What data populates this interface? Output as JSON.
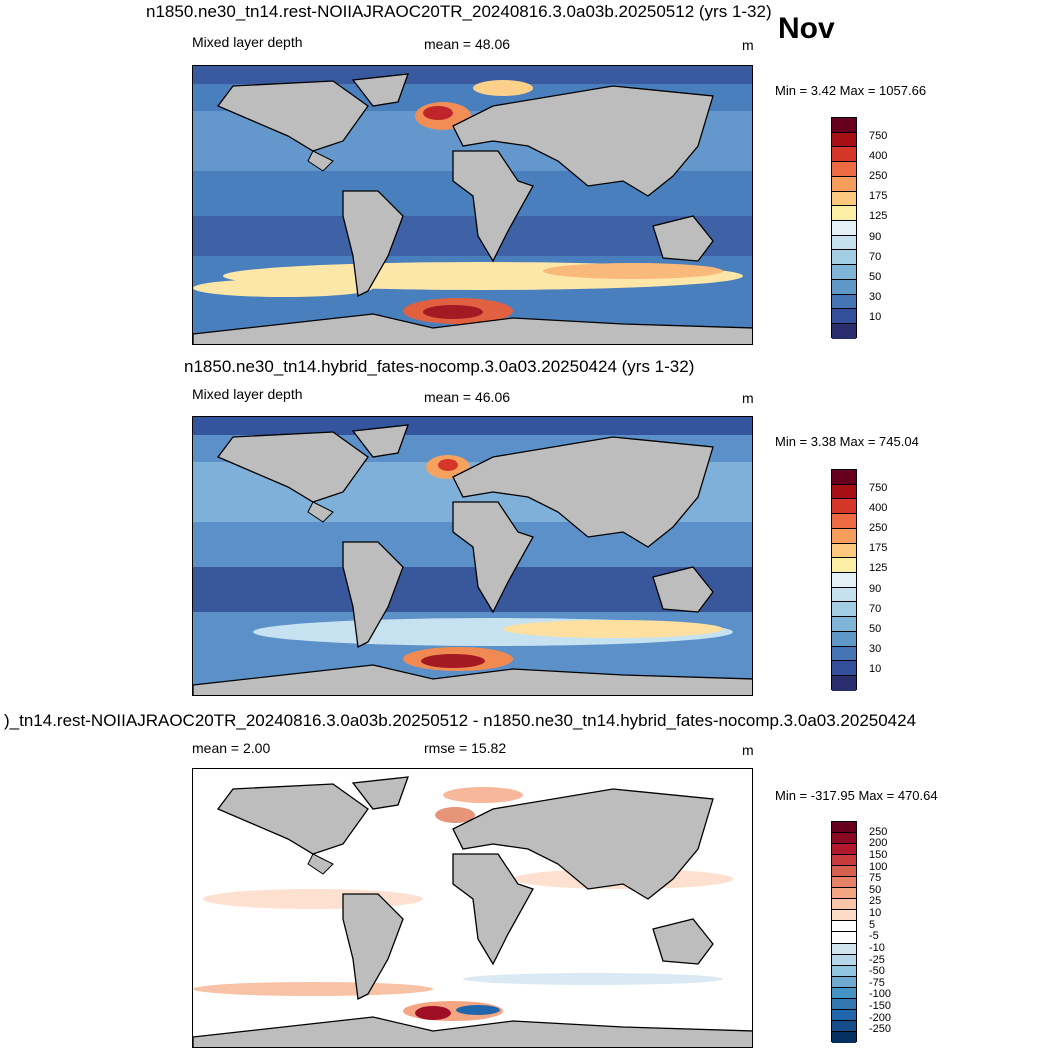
{
  "month": "Nov",
  "panels": [
    {
      "title": "n1850.ne30_tn14.rest-NOIIAJRAOC20TR_20240816.3.0a03b.20250512 (yrs 1-32)",
      "left_label": "Mixed layer depth",
      "center_label": "mean =  48.06",
      "units": "m",
      "minmax": "Min =   3.42 Max = 1057.66",
      "colorbar_labels": [
        "750",
        "400",
        "250",
        "175",
        "125",
        "90",
        "70",
        "50",
        "30",
        "10"
      ],
      "colorbar_colors": [
        "#67001f",
        "#a50f15",
        "#d6352a",
        "#ee6a43",
        "#f79e5e",
        "#fdc97f",
        "#fdeea6",
        "#e3f1f7",
        "#c5e0ee",
        "#a3cde5",
        "#80b4d6",
        "#5f98c6",
        "#4575b4",
        "#35509a",
        "#2b2e6e"
      ]
    },
    {
      "title": "n1850.ne30_tn14.hybrid_fates-nocomp.3.0a03.20250424 (yrs 1-32)",
      "left_label": "Mixed layer depth",
      "center_label": "mean =  46.06",
      "units": "m",
      "minmax": "Min =   3.38 Max = 745.04",
      "colorbar_labels": [
        "750",
        "400",
        "250",
        "175",
        "125",
        "90",
        "70",
        "50",
        "30",
        "10"
      ],
      "colorbar_colors": [
        "#67001f",
        "#a50f15",
        "#d6352a",
        "#ee6a43",
        "#f79e5e",
        "#fdc97f",
        "#fdeea6",
        "#e3f1f7",
        "#c5e0ee",
        "#a3cde5",
        "#80b4d6",
        "#5f98c6",
        "#4575b4",
        "#35509a",
        "#2b2e6e"
      ]
    },
    {
      "title": ")_tn14.rest-NOIIAJRAOC20TR_20240816.3.0a03b.20250512 - n1850.ne30_tn14.hybrid_fates-nocomp.3.0a03.20250424",
      "left_label": "mean =  2.00",
      "center_label": "rmse =  15.82",
      "units": "m",
      "minmax": "Min = -317.95 Max = 470.64",
      "colorbar_labels": [
        "250",
        "200",
        "150",
        "100",
        "75",
        "50",
        "25",
        "10",
        "5",
        "-5",
        "-10",
        "-25",
        "-50",
        "-75",
        "-100",
        "-150",
        "-200",
        "-250"
      ],
      "colorbar_colors": [
        "#67001f",
        "#8b0a22",
        "#b2182b",
        "#c93a3c",
        "#d6604d",
        "#e58268",
        "#f4a582",
        "#f9c4a8",
        "#fddbc7",
        "#ffffff",
        "#ffffff",
        "#d1e5f0",
        "#b7d6e9",
        "#92c5de",
        "#6fa9d0",
        "#4393c3",
        "#3478b3",
        "#2166ac",
        "#154e8a",
        "#053061"
      ]
    }
  ]
}
